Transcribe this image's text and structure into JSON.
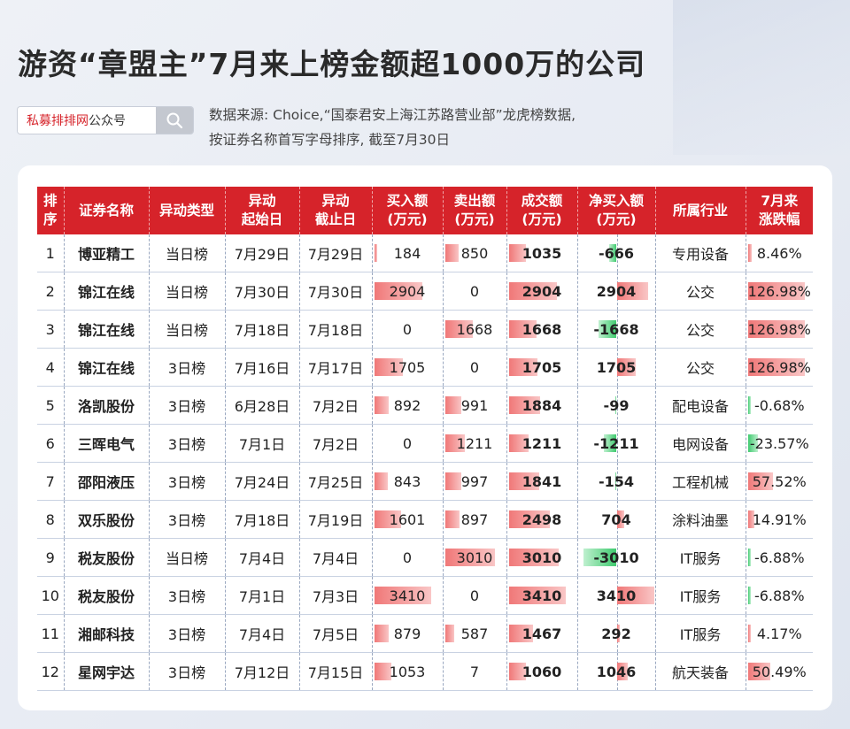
{
  "title": "游资“章盟主”7月来上榜金额超1000万的公司",
  "search": {
    "highlight": "私募排排网",
    "rest": "公众号",
    "button_icon": "search-icon"
  },
  "source": [
    "数据来源: Choice,“国泰君安上海江苏路营业部”龙虎榜数据,",
    "按证券名称首写字母排序, 截至7月30日"
  ],
  "colors": {
    "header": "#d6232a",
    "bar_red": "#f07878",
    "bar_green": "#3fca6f"
  },
  "table": {
    "headers": [
      [
        "排",
        "序"
      ],
      [
        "证券名称"
      ],
      [
        "异动类型"
      ],
      [
        "异动",
        "起始日"
      ],
      [
        "异动",
        "截止日"
      ],
      [
        "买入额",
        "(万元)"
      ],
      [
        "卖出额",
        "(万元)"
      ],
      [
        "成交额",
        "(万元)"
      ],
      [
        "净买入额",
        "(万元)"
      ],
      [
        "所属行业"
      ],
      [
        "7月来",
        "涨跌幅"
      ]
    ],
    "rows": [
      {
        "no": "1",
        "name": "博亚精工",
        "type": "当日榜",
        "start": "7月29日",
        "end": "7月29日",
        "buy": "184",
        "sell": "850",
        "amount": "1035",
        "net": "-666",
        "industry": "专用设备",
        "change": "8.46%",
        "buy_v": 184,
        "sell_v": 850,
        "amount_v": 1035,
        "net_v": -666,
        "change_v": 8.46
      },
      {
        "no": "2",
        "name": "锦江在线",
        "type": "当日榜",
        "start": "7月30日",
        "end": "7月30日",
        "buy": "2904",
        "sell": "0",
        "amount": "2904",
        "net": "2904",
        "industry": "公交",
        "change": "126.98%",
        "buy_v": 2904,
        "sell_v": 0,
        "amount_v": 2904,
        "net_v": 2904,
        "change_v": 126.98
      },
      {
        "no": "3",
        "name": "锦江在线",
        "type": "当日榜",
        "start": "7月18日",
        "end": "7月18日",
        "buy": "0",
        "sell": "1668",
        "amount": "1668",
        "net": "-1668",
        "industry": "公交",
        "change": "126.98%",
        "buy_v": 0,
        "sell_v": 1668,
        "amount_v": 1668,
        "net_v": -1668,
        "change_v": 126.98
      },
      {
        "no": "4",
        "name": "锦江在线",
        "type": "3日榜",
        "start": "7月16日",
        "end": "7月17日",
        "buy": "1705",
        "sell": "0",
        "amount": "1705",
        "net": "1705",
        "industry": "公交",
        "change": "126.98%",
        "buy_v": 1705,
        "sell_v": 0,
        "amount_v": 1705,
        "net_v": 1705,
        "change_v": 126.98
      },
      {
        "no": "5",
        "name": "洛凯股份",
        "type": "3日榜",
        "start": "6月28日",
        "end": "7月2日",
        "buy": "892",
        "sell": "991",
        "amount": "1884",
        "net": "-99",
        "industry": "配电设备",
        "change": "-0.68%",
        "buy_v": 892,
        "sell_v": 991,
        "amount_v": 1884,
        "net_v": -99,
        "change_v": -0.68
      },
      {
        "no": "6",
        "name": "三晖电气",
        "type": "3日榜",
        "start": "7月1日",
        "end": "7月2日",
        "buy": "0",
        "sell": "1211",
        "amount": "1211",
        "net": "-1211",
        "industry": "电网设备",
        "change": "-23.57%",
        "buy_v": 0,
        "sell_v": 1211,
        "amount_v": 1211,
        "net_v": -1211,
        "change_v": -23.57
      },
      {
        "no": "7",
        "name": "邵阳液压",
        "type": "3日榜",
        "start": "7月24日",
        "end": "7月25日",
        "buy": "843",
        "sell": "997",
        "amount": "1841",
        "net": "-154",
        "industry": "工程机械",
        "change": "57.52%",
        "buy_v": 843,
        "sell_v": 997,
        "amount_v": 1841,
        "net_v": -154,
        "change_v": 57.52
      },
      {
        "no": "8",
        "name": "双乐股份",
        "type": "3日榜",
        "start": "7月18日",
        "end": "7月19日",
        "buy": "1601",
        "sell": "897",
        "amount": "2498",
        "net": "704",
        "industry": "涂料油墨",
        "change": "14.91%",
        "buy_v": 1601,
        "sell_v": 897,
        "amount_v": 2498,
        "net_v": 704,
        "change_v": 14.91
      },
      {
        "no": "9",
        "name": "税友股份",
        "type": "当日榜",
        "start": "7月4日",
        "end": "7月4日",
        "buy": "0",
        "sell": "3010",
        "amount": "3010",
        "net": "-3010",
        "industry": "IT服务",
        "change": "-6.88%",
        "buy_v": 0,
        "sell_v": 3010,
        "amount_v": 3010,
        "net_v": -3010,
        "change_v": -6.88
      },
      {
        "no": "10",
        "name": "税友股份",
        "type": "3日榜",
        "start": "7月1日",
        "end": "7月3日",
        "buy": "3410",
        "sell": "0",
        "amount": "3410",
        "net": "3410",
        "industry": "IT服务",
        "change": "-6.88%",
        "buy_v": 3410,
        "sell_v": 0,
        "amount_v": 3410,
        "net_v": 3410,
        "change_v": -6.88
      },
      {
        "no": "11",
        "name": "湘邮科技",
        "type": "3日榜",
        "start": "7月4日",
        "end": "7月5日",
        "buy": "879",
        "sell": "587",
        "amount": "1467",
        "net": "292",
        "industry": "IT服务",
        "change": "4.17%",
        "buy_v": 879,
        "sell_v": 587,
        "amount_v": 1467,
        "net_v": 292,
        "change_v": 4.17
      },
      {
        "no": "12",
        "name": "星网宇达",
        "type": "3日榜",
        "start": "7月12日",
        "end": "7月15日",
        "buy": "1053",
        "sell": "7",
        "amount": "1060",
        "net": "1046",
        "industry": "航天装备",
        "change": "50.49%",
        "buy_v": 1053,
        "sell_v": 7,
        "amount_v": 1060,
        "net_v": 1046,
        "change_v": 50.49
      }
    ]
  }
}
